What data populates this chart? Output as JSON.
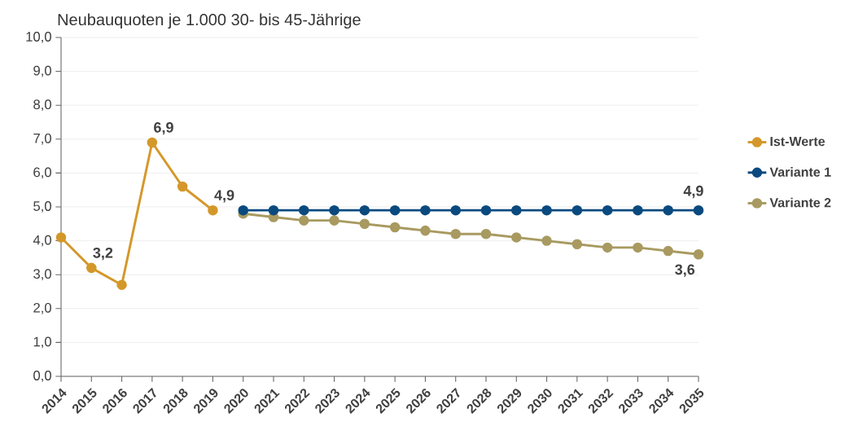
{
  "chart_data": {
    "type": "line",
    "title": "Neubauquoten je 1.000 30- bis 45-Jährige",
    "categories": [
      "2014",
      "2015",
      "2016",
      "2017",
      "2018",
      "2019",
      "2020",
      "2021",
      "2022",
      "2023",
      "2024",
      "2025",
      "2026",
      "2027",
      "2028",
      "2029",
      "2030",
      "2031",
      "2032",
      "2033",
      "2034",
      "2035"
    ],
    "series": [
      {
        "name": "Ist-Werte",
        "color": "#d4982a",
        "values": [
          4.1,
          3.2,
          2.7,
          6.9,
          5.6,
          4.9,
          null,
          null,
          null,
          null,
          null,
          null,
          null,
          null,
          null,
          null,
          null,
          null,
          null,
          null,
          null,
          null
        ],
        "value_labels": [
          null,
          "3,2",
          null,
          "6,9",
          null,
          "4,9",
          null,
          null,
          null,
          null,
          null,
          null,
          null,
          null,
          null,
          null,
          null,
          null,
          null,
          null,
          null,
          null
        ]
      },
      {
        "name": "Variante 1",
        "color": "#0a4a7f",
        "values": [
          null,
          null,
          null,
          null,
          null,
          null,
          4.9,
          4.9,
          4.9,
          4.9,
          4.9,
          4.9,
          4.9,
          4.9,
          4.9,
          4.9,
          4.9,
          4.9,
          4.9,
          4.9,
          4.9,
          4.9
        ],
        "value_labels": [
          null,
          null,
          null,
          null,
          null,
          null,
          null,
          null,
          null,
          null,
          null,
          null,
          null,
          null,
          null,
          null,
          null,
          null,
          null,
          null,
          null,
          "4,9"
        ]
      },
      {
        "name": "Variante 2",
        "color": "#a89a60",
        "values": [
          null,
          null,
          null,
          null,
          null,
          null,
          4.8,
          4.7,
          4.6,
          4.6,
          4.5,
          4.4,
          4.3,
          4.2,
          4.2,
          4.1,
          4.0,
          3.9,
          3.8,
          3.8,
          3.7,
          3.6
        ],
        "value_labels": [
          null,
          null,
          null,
          null,
          null,
          null,
          null,
          null,
          null,
          null,
          null,
          null,
          null,
          null,
          null,
          null,
          null,
          null,
          null,
          null,
          null,
          "3,6"
        ]
      }
    ],
    "ylim": [
      0,
      10
    ],
    "yticks": [
      {
        "value": 0,
        "label": "0,0"
      },
      {
        "value": 1,
        "label": "1,0"
      },
      {
        "value": 2,
        "label": "2,0"
      },
      {
        "value": 3,
        "label": "3,0"
      },
      {
        "value": 4,
        "label": "4,0"
      },
      {
        "value": 5,
        "label": "5,0"
      },
      {
        "value": 6,
        "label": "6,0"
      },
      {
        "value": 7,
        "label": "7,0"
      },
      {
        "value": 8,
        "label": "8,0"
      },
      {
        "value": 9,
        "label": "9,0"
      },
      {
        "value": 10,
        "label": "10,0"
      }
    ],
    "grid": "y",
    "legend": "right",
    "marker": "circle",
    "line_style": "solid"
  }
}
